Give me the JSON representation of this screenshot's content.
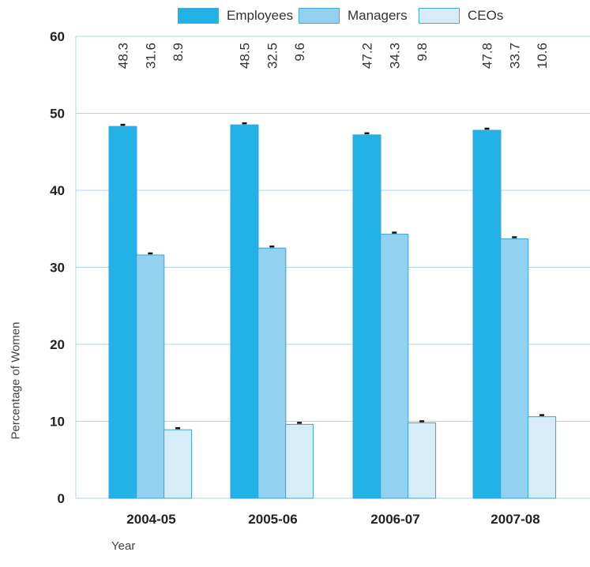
{
  "chart_data": {
    "type": "bar",
    "title": "",
    "xlabel": "Year",
    "ylabel": "Percentage of Women",
    "categories": [
      "2004-05",
      "2005-06",
      "2006-07",
      "2007-08"
    ],
    "series": [
      {
        "name": "Employees",
        "values": [
          48.3,
          48.5,
          47.2,
          47.8
        ],
        "color": "#22b2e8"
      },
      {
        "name": "Managers",
        "values": [
          31.6,
          32.5,
          34.3,
          33.7
        ],
        "color": "#92d1f0"
      },
      {
        "name": "CEOs",
        "values": [
          8.9,
          9.6,
          9.8,
          10.6
        ],
        "color": "#d6edf9"
      }
    ],
    "value_labels": [
      [
        "48.3",
        "31.6",
        "8.9"
      ],
      [
        "48.5",
        "32.5",
        "9.6"
      ],
      [
        "47.2",
        "34.3",
        "9.8"
      ],
      [
        "47.8",
        "33.7",
        "10.6"
      ]
    ],
    "yticks": [
      0,
      10,
      20,
      30,
      40,
      50,
      60
    ],
    "ylim": [
      0,
      60
    ],
    "grid": true,
    "legend_position": "top"
  }
}
